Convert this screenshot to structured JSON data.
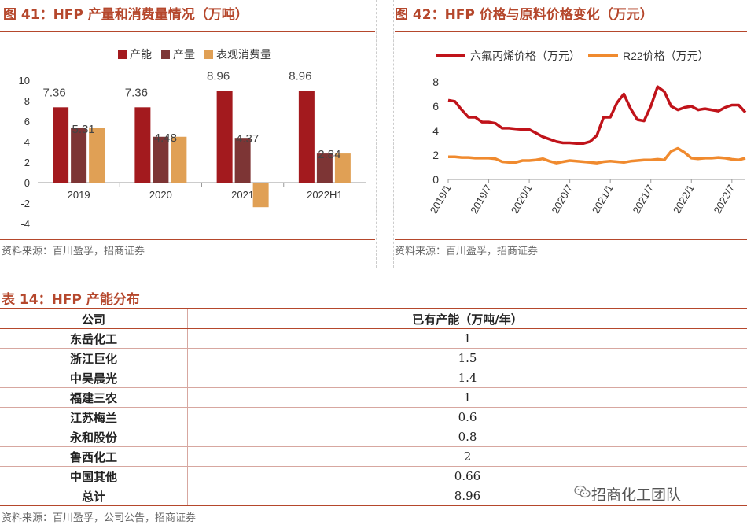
{
  "fig41": {
    "title": "图 41：HFP 产量和消费量情况（万吨）",
    "source": "资料来源：百川盈孚，招商证券"
  },
  "fig42": {
    "title": "图 42：HFP 价格与原料价格变化（万元）",
    "source": "资料来源：百川盈孚，招商证券"
  },
  "table14": {
    "title": "表 14：HFP 产能分布",
    "header_company": "公司",
    "header_capacity": "已有产能（万吨/年）",
    "rows": [
      {
        "company": "东岳化工",
        "capacity": "1"
      },
      {
        "company": "浙江巨化",
        "capacity": "1.5"
      },
      {
        "company": "中昊晨光",
        "capacity": "1.4"
      },
      {
        "company": "福建三农",
        "capacity": "1"
      },
      {
        "company": "江苏梅兰",
        "capacity": "0.6"
      },
      {
        "company": "永和股份",
        "capacity": "0.8"
      },
      {
        "company": "鲁西化工",
        "capacity": "2"
      },
      {
        "company": "中国其他",
        "capacity": "0.66"
      }
    ],
    "total_label": "总计",
    "total_value": "8.96",
    "source": "资料来源：百川盈孚，公司公告，招商证券"
  },
  "watermark": {
    "text": "招商化工团队",
    "icon": "wechat-icon"
  },
  "chart_data": [
    {
      "type": "bar",
      "categories": [
        "2019",
        "2020",
        "2021",
        "2022H1"
      ],
      "series": [
        {
          "name": "产能",
          "color": "#a31a1e",
          "values": [
            7.36,
            7.36,
            8.96,
            8.96
          ]
        },
        {
          "name": "产量",
          "color": "#7d3535",
          "values": [
            5.31,
            4.48,
            4.37,
            2.84
          ]
        },
        {
          "name": "表观消费量",
          "color": "#e0a055",
          "values": [
            5.31,
            4.48,
            -2.4,
            2.84
          ]
        }
      ],
      "data_labels": [
        {
          "series": "产能",
          "values": [
            "7.36",
            "7.36",
            "8.96",
            "8.96"
          ]
        },
        {
          "series": "产量",
          "values": [
            "5.31",
            "4.48",
            "4.37",
            "2.84"
          ]
        }
      ],
      "ylim": [
        -4,
        10
      ],
      "yticks": [
        -4,
        -2,
        0,
        2,
        4,
        6,
        8,
        10
      ],
      "legend_position": "top",
      "grid": false
    },
    {
      "type": "line",
      "x_ticks": [
        "2019/1",
        "2019/7",
        "2020/1",
        "2020/7",
        "2021/1",
        "2021/7",
        "2022/1",
        "2022/7"
      ],
      "series": [
        {
          "name": "六氟丙烯价格（万元）",
          "color": "#c0131a",
          "values": [
            6.5,
            6.4,
            5.7,
            5.1,
            5.1,
            4.7,
            4.7,
            4.6,
            4.2,
            4.2,
            4.15,
            4.1,
            4.1,
            3.8,
            3.5,
            3.3,
            3.1,
            3.0,
            3.0,
            2.95,
            2.95,
            3.1,
            3.6,
            5.1,
            5.1,
            6.3,
            7.0,
            5.8,
            4.9,
            4.8,
            6.0,
            7.6,
            7.2,
            6.0,
            5.7,
            5.9,
            6.0,
            5.7,
            5.8,
            5.7,
            5.6,
            5.9,
            6.1,
            6.1,
            5.5
          ]
        },
        {
          "name": "R22价格（万元）",
          "color": "#f08a2e",
          "values": [
            1.85,
            1.85,
            1.8,
            1.8,
            1.75,
            1.75,
            1.75,
            1.7,
            1.45,
            1.4,
            1.4,
            1.55,
            1.55,
            1.6,
            1.7,
            1.5,
            1.35,
            1.45,
            1.55,
            1.5,
            1.45,
            1.4,
            1.35,
            1.45,
            1.5,
            1.45,
            1.4,
            1.5,
            1.55,
            1.6,
            1.6,
            1.65,
            1.6,
            2.3,
            2.55,
            2.2,
            1.75,
            1.7,
            1.75,
            1.75,
            1.8,
            1.75,
            1.65,
            1.6,
            1.75
          ]
        }
      ],
      "ylim": [
        0,
        8
      ],
      "yticks": [
        0,
        2,
        4,
        6,
        8
      ],
      "legend_position": "top",
      "grid": false
    }
  ]
}
